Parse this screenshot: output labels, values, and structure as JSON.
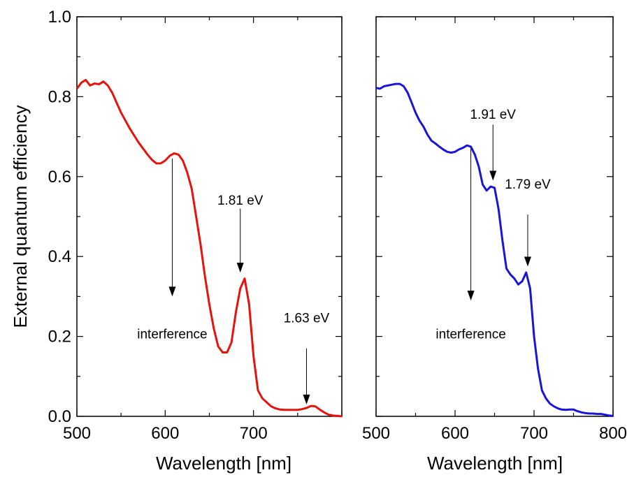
{
  "ylabel": "External quantum efficiency",
  "chart_data": [
    {
      "type": "line",
      "xlabel": "Wavelength [nm]",
      "ylabel": "External quantum efficiency",
      "xlim": [
        500,
        800
      ],
      "ylim": [
        0,
        1.0
      ],
      "xticks": [
        "500",
        "600",
        "700"
      ],
      "yticks": [
        "0.0",
        "0.2",
        "0.4",
        "0.6",
        "0.8",
        "1.0"
      ],
      "grid": false,
      "series": [
        {
          "color": "#e8120d",
          "x": [
            500,
            505,
            510,
            515,
            520,
            525,
            530,
            535,
            540,
            545,
            550,
            560,
            570,
            580,
            585,
            590,
            595,
            600,
            605,
            610,
            615,
            620,
            625,
            630,
            635,
            640,
            645,
            650,
            655,
            660,
            665,
            670,
            675,
            680,
            685,
            690,
            695,
            700,
            705,
            710,
            715,
            720,
            725,
            730,
            735,
            740,
            745,
            750,
            755,
            760,
            765,
            770,
            775,
            780,
            785,
            790,
            795,
            800
          ],
          "y": [
            0.82,
            0.835,
            0.842,
            0.828,
            0.833,
            0.831,
            0.838,
            0.828,
            0.81,
            0.785,
            0.76,
            0.72,
            0.685,
            0.655,
            0.642,
            0.633,
            0.633,
            0.64,
            0.652,
            0.658,
            0.655,
            0.64,
            0.61,
            0.57,
            0.5,
            0.43,
            0.35,
            0.28,
            0.22,
            0.175,
            0.16,
            0.16,
            0.185,
            0.26,
            0.32,
            0.345,
            0.28,
            0.15,
            0.065,
            0.045,
            0.035,
            0.025,
            0.02,
            0.017,
            0.016,
            0.016,
            0.016,
            0.016,
            0.018,
            0.021,
            0.026,
            0.025,
            0.017,
            0.01,
            0.004,
            0.002,
            0.001,
            0.0
          ]
        }
      ],
      "annotations": [
        {
          "text": "1.81 eV",
          "x": 685,
          "y": 0.53,
          "arrow_from": [
            685,
            0.52
          ],
          "arrow_to": [
            685,
            0.36
          ]
        },
        {
          "text": "1.63 eV",
          "x": 760,
          "y": 0.235,
          "arrow_from": [
            760,
            0.17
          ],
          "arrow_to": [
            760,
            0.03
          ]
        },
        {
          "text": "interference",
          "x": 608,
          "y": 0.195,
          "arrow_from": [
            608,
            0.645
          ],
          "arrow_to": [
            608,
            0.3
          ]
        }
      ]
    },
    {
      "type": "line",
      "xlabel": "Wavelength [nm]",
      "xlim": [
        500,
        800
      ],
      "ylim": [
        0,
        1.0
      ],
      "xticks": [
        "500",
        "600",
        "700",
        "800"
      ],
      "grid": false,
      "series": [
        {
          "color": "#1a14d8",
          "x": [
            500,
            505,
            510,
            515,
            520,
            525,
            530,
            535,
            540,
            545,
            550,
            555,
            560,
            565,
            570,
            575,
            580,
            585,
            590,
            595,
            600,
            605,
            610,
            615,
            620,
            625,
            630,
            635,
            640,
            645,
            650,
            655,
            660,
            665,
            670,
            675,
            680,
            685,
            690,
            695,
            700,
            705,
            710,
            715,
            720,
            725,
            730,
            735,
            740,
            745,
            750,
            755,
            760,
            765,
            770,
            775,
            780,
            785,
            790,
            795,
            800
          ],
          "y": [
            0.822,
            0.82,
            0.826,
            0.828,
            0.83,
            0.832,
            0.832,
            0.826,
            0.81,
            0.785,
            0.76,
            0.74,
            0.725,
            0.705,
            0.69,
            0.683,
            0.675,
            0.668,
            0.662,
            0.66,
            0.662,
            0.668,
            0.672,
            0.678,
            0.675,
            0.655,
            0.625,
            0.58,
            0.565,
            0.575,
            0.572,
            0.52,
            0.44,
            0.37,
            0.355,
            0.345,
            0.33,
            0.338,
            0.36,
            0.32,
            0.2,
            0.12,
            0.065,
            0.045,
            0.032,
            0.025,
            0.02,
            0.017,
            0.016,
            0.017,
            0.017,
            0.013,
            0.01,
            0.008,
            0.007,
            0.007,
            0.006,
            0.006,
            0.004,
            0.002,
            0.001
          ]
        }
      ],
      "annotations": [
        {
          "text": "1.91 eV",
          "x": 648,
          "y": 0.745,
          "arrow_from": [
            648,
            0.73
          ],
          "arrow_to": [
            648,
            0.59
          ]
        },
        {
          "text": "1.79 eV",
          "x": 692,
          "y": 0.57,
          "arrow_from": [
            692,
            0.505
          ],
          "arrow_to": [
            692,
            0.375
          ]
        },
        {
          "text": "interference",
          "x": 620,
          "y": 0.195,
          "arrow_from": [
            620,
            0.67
          ],
          "arrow_to": [
            620,
            0.29
          ]
        }
      ]
    }
  ]
}
